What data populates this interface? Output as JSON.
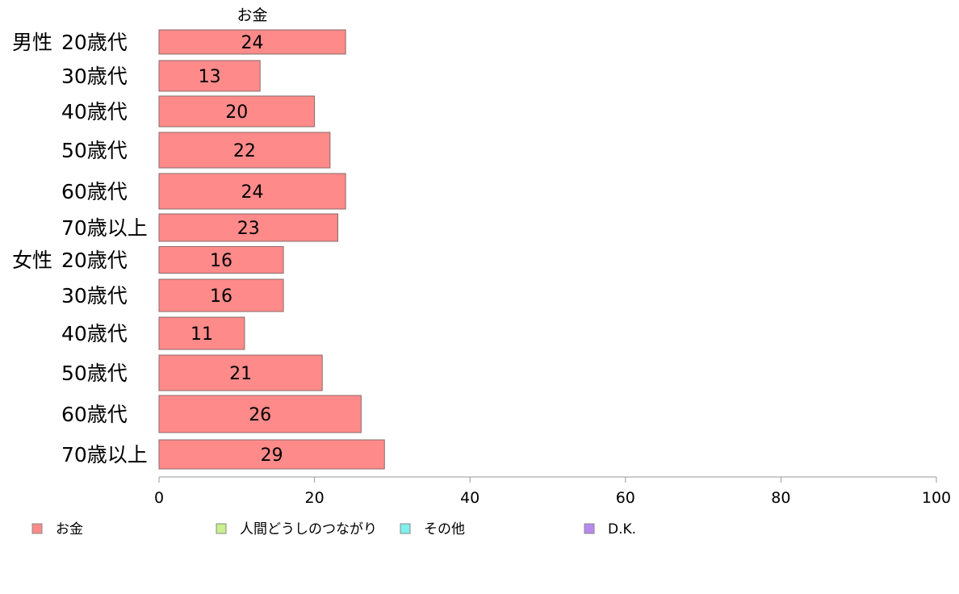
{
  "chart_data": {
    "type": "bar",
    "orientation": "horizontal",
    "series_title": "お金",
    "groups": [
      {
        "label": "男性",
        "categories": [
          "20歳代",
          "30歳代",
          "40歳代",
          "50歳代",
          "60歳代",
          "70歳以上"
        ],
        "values": [
          24,
          13,
          20,
          22,
          24,
          23
        ]
      },
      {
        "label": "女性",
        "categories": [
          "20歳代",
          "30歳代",
          "40歳代",
          "50歳代",
          "60歳代",
          "70歳以上"
        ],
        "values": [
          16,
          16,
          11,
          21,
          26,
          29
        ]
      }
    ],
    "xlim": [
      0,
      100
    ],
    "xticks": [
      0,
      20,
      40,
      60,
      80,
      100
    ],
    "legend": [
      {
        "label": "お金",
        "color": "#ff8a8a"
      },
      {
        "label": "人間どうしのつながり",
        "color": "#c8f08c"
      },
      {
        "label": "その他",
        "color": "#80f0ec"
      },
      {
        "label": "D.K.",
        "color": "#b888f0"
      }
    ],
    "legend_position": "bottom",
    "grid": false
  }
}
